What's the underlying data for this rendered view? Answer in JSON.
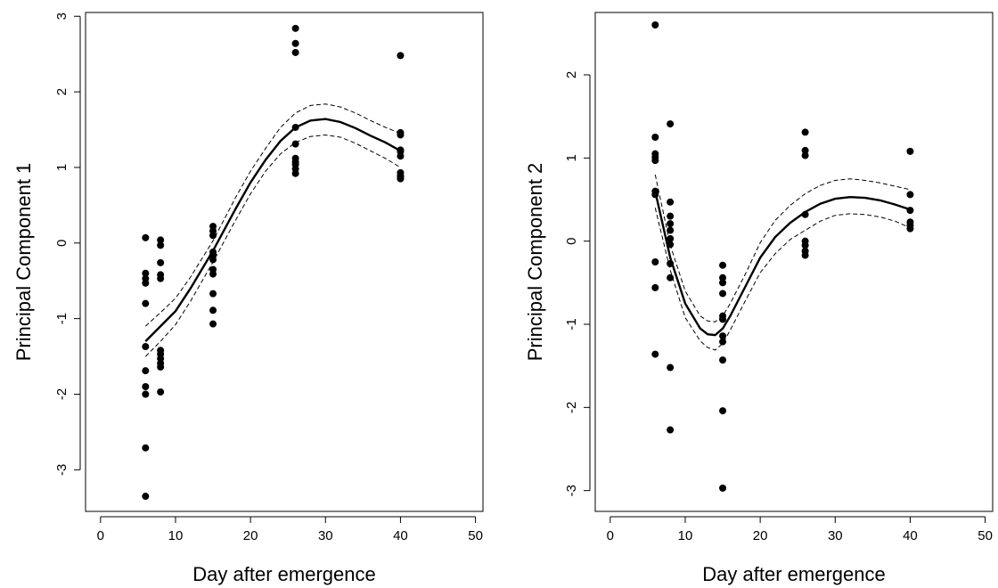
{
  "chart_data": [
    {
      "type": "scatter",
      "xlabel": "Day after emergence",
      "ylabel": "Principal Component 1",
      "xlim": [
        -2,
        51
      ],
      "ylim": [
        -3.55,
        3.05
      ],
      "xticks": [
        0,
        10,
        20,
        30,
        40,
        50
      ],
      "yticks": [
        -3,
        -2,
        -1,
        0,
        1,
        2,
        3
      ],
      "grid": false,
      "points": [
        [
          6,
          0.07
        ],
        [
          6,
          -0.4
        ],
        [
          6,
          -0.47
        ],
        [
          6,
          -0.53
        ],
        [
          6,
          -0.8
        ],
        [
          6,
          -1.37
        ],
        [
          6,
          -1.69
        ],
        [
          6,
          -1.9
        ],
        [
          6,
          -2.0
        ],
        [
          6,
          -2.71
        ],
        [
          6,
          -3.35
        ],
        [
          8,
          0.04
        ],
        [
          8,
          -0.03
        ],
        [
          8,
          -0.26
        ],
        [
          8,
          -0.42
        ],
        [
          8,
          -0.47
        ],
        [
          8,
          -1.42
        ],
        [
          8,
          -1.47
        ],
        [
          8,
          -1.53
        ],
        [
          8,
          -1.59
        ],
        [
          8,
          -1.64
        ],
        [
          8,
          -1.97
        ],
        [
          15,
          0.22
        ],
        [
          15,
          0.16
        ],
        [
          15,
          0.1
        ],
        [
          15,
          -0.12
        ],
        [
          15,
          -0.16
        ],
        [
          15,
          -0.22
        ],
        [
          15,
          -0.35
        ],
        [
          15,
          -0.41
        ],
        [
          15,
          -0.67
        ],
        [
          15,
          -0.89
        ],
        [
          15,
          -1.07
        ],
        [
          26,
          2.84
        ],
        [
          26,
          2.64
        ],
        [
          26,
          2.52
        ],
        [
          26,
          1.53
        ],
        [
          26,
          1.31
        ],
        [
          26,
          1.12
        ],
        [
          26,
          1.07
        ],
        [
          26,
          1.04
        ],
        [
          26,
          0.98
        ],
        [
          26,
          0.92
        ],
        [
          40,
          2.48
        ],
        [
          40,
          1.46
        ],
        [
          40,
          1.43
        ],
        [
          40,
          1.23
        ],
        [
          40,
          1.21
        ],
        [
          40,
          1.15
        ],
        [
          40,
          0.93
        ],
        [
          40,
          0.89
        ],
        [
          40,
          0.87
        ],
        [
          40,
          0.85
        ]
      ],
      "fit": {
        "x": [
          6,
          8,
          10,
          12,
          15,
          18,
          20,
          22,
          24,
          26,
          28,
          30,
          32,
          34,
          36,
          38,
          40
        ],
        "y": [
          -1.3,
          -1.1,
          -0.9,
          -0.6,
          -0.1,
          0.45,
          0.8,
          1.1,
          1.35,
          1.53,
          1.62,
          1.64,
          1.6,
          1.52,
          1.42,
          1.33,
          1.22
        ]
      },
      "ci_upper": {
        "x": [
          6,
          8,
          10,
          12,
          15,
          18,
          20,
          22,
          24,
          26,
          28,
          30,
          32,
          34,
          36,
          38,
          40
        ],
        "y": [
          -1.1,
          -0.92,
          -0.73,
          -0.45,
          0.03,
          0.6,
          0.95,
          1.25,
          1.53,
          1.72,
          1.82,
          1.84,
          1.8,
          1.72,
          1.62,
          1.53,
          1.45
        ]
      },
      "ci_lower": {
        "x": [
          6,
          8,
          10,
          12,
          15,
          18,
          20,
          22,
          24,
          26,
          28,
          30,
          32,
          34,
          36,
          38,
          40
        ],
        "y": [
          -1.5,
          -1.3,
          -1.08,
          -0.77,
          -0.25,
          0.3,
          0.65,
          0.95,
          1.18,
          1.33,
          1.41,
          1.43,
          1.4,
          1.32,
          1.22,
          1.12,
          1.0
        ]
      }
    },
    {
      "type": "scatter",
      "xlabel": "Day after emergence",
      "ylabel": "Principal Component 2",
      "xlim": [
        -2,
        51
      ],
      "ylim": [
        -3.25,
        2.75
      ],
      "xticks": [
        0,
        10,
        20,
        30,
        40,
        50
      ],
      "yticks": [
        -3,
        -2,
        -1,
        0,
        1,
        2
      ],
      "grid": false,
      "points": [
        [
          6,
          2.6
        ],
        [
          6,
          1.25
        ],
        [
          6,
          1.05
        ],
        [
          6,
          1.01
        ],
        [
          6,
          0.97
        ],
        [
          6,
          0.6
        ],
        [
          6,
          0.56
        ],
        [
          6,
          -0.25
        ],
        [
          6,
          -0.56
        ],
        [
          6,
          -1.36
        ],
        [
          8,
          1.41
        ],
        [
          8,
          0.47
        ],
        [
          8,
          0.3
        ],
        [
          8,
          0.21
        ],
        [
          8,
          0.13
        ],
        [
          8,
          0.03
        ],
        [
          8,
          -0.04
        ],
        [
          8,
          -0.27
        ],
        [
          8,
          -0.44
        ],
        [
          8,
          -1.52
        ],
        [
          8,
          -2.27
        ],
        [
          15,
          -0.29
        ],
        [
          15,
          -0.44
        ],
        [
          15,
          -0.5
        ],
        [
          15,
          -0.63
        ],
        [
          15,
          -0.9
        ],
        [
          15,
          -0.94
        ],
        [
          15,
          -1.14
        ],
        [
          15,
          -1.21
        ],
        [
          15,
          -1.43
        ],
        [
          15,
          -2.04
        ],
        [
          15,
          -2.97
        ],
        [
          26,
          1.31
        ],
        [
          26,
          1.09
        ],
        [
          26,
          1.03
        ],
        [
          26,
          0.32
        ],
        [
          26,
          0.0
        ],
        [
          26,
          -0.05
        ],
        [
          26,
          -0.12
        ],
        [
          26,
          -0.17
        ],
        [
          40,
          1.08
        ],
        [
          40,
          0.56
        ],
        [
          40,
          0.37
        ],
        [
          40,
          0.23
        ],
        [
          40,
          0.19
        ],
        [
          40,
          0.15
        ]
      ],
      "fit": {
        "x": [
          6,
          8,
          10,
          12,
          13,
          14,
          15,
          16,
          18,
          20,
          22,
          24,
          26,
          28,
          30,
          32,
          34,
          36,
          38,
          40
        ],
        "y": [
          0.6,
          -0.2,
          -0.75,
          -1.05,
          -1.12,
          -1.13,
          -1.05,
          -0.9,
          -0.55,
          -0.2,
          0.05,
          0.22,
          0.35,
          0.45,
          0.51,
          0.53,
          0.52,
          0.49,
          0.44,
          0.38
        ]
      },
      "ci_upper": {
        "x": [
          6,
          8,
          10,
          12,
          13,
          14,
          15,
          16,
          18,
          20,
          22,
          24,
          26,
          28,
          30,
          32,
          34,
          36,
          38,
          40
        ],
        "y": [
          0.8,
          -0.05,
          -0.6,
          -0.9,
          -0.96,
          -0.97,
          -0.9,
          -0.75,
          -0.4,
          -0.02,
          0.25,
          0.43,
          0.57,
          0.67,
          0.73,
          0.75,
          0.73,
          0.7,
          0.66,
          0.62
        ]
      },
      "ci_lower": {
        "x": [
          6,
          8,
          10,
          12,
          13,
          14,
          15,
          16,
          18,
          20,
          22,
          24,
          26,
          28,
          30,
          32,
          34,
          36,
          38,
          40
        ],
        "y": [
          0.4,
          -0.35,
          -0.92,
          -1.2,
          -1.28,
          -1.31,
          -1.23,
          -1.07,
          -0.72,
          -0.38,
          -0.15,
          0.02,
          0.13,
          0.24,
          0.31,
          0.33,
          0.32,
          0.29,
          0.24,
          0.16
        ]
      }
    }
  ]
}
